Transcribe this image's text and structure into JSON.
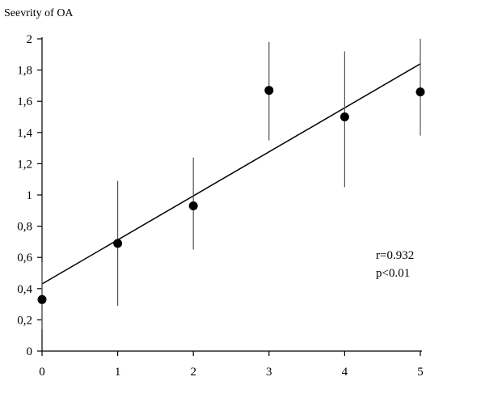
{
  "chart_data": {
    "type": "scatter",
    "ylabel": "Seevrity of OA",
    "xlim": [
      0,
      5
    ],
    "ylim": [
      0,
      2
    ],
    "x_ticks": [
      "0",
      "1",
      "2",
      "3",
      "4",
      "5"
    ],
    "y_ticks": [
      "0",
      "0,2",
      "0,4",
      "0,6",
      "0,8",
      "1",
      "1,2",
      "1,4",
      "1,6",
      "1,8",
      "2"
    ],
    "grid": false,
    "points": [
      {
        "x": 0,
        "y": 0.33,
        "err_low": 0.14,
        "err_high": 0.57
      },
      {
        "x": 1,
        "y": 0.69,
        "err_low": 0.29,
        "err_high": 1.09
      },
      {
        "x": 2,
        "y": 0.93,
        "err_low": 0.65,
        "err_high": 1.24
      },
      {
        "x": 3,
        "y": 1.67,
        "err_low": 1.35,
        "err_high": 1.98
      },
      {
        "x": 4,
        "y": 1.5,
        "err_low": 1.05,
        "err_high": 1.92
      },
      {
        "x": 5,
        "y": 1.66,
        "err_low": 1.38,
        "err_high": 2.0
      }
    ],
    "regression_line": {
      "x": [
        0,
        5
      ],
      "y": [
        0.43,
        1.84
      ]
    },
    "annotations": [
      "r=0.932",
      "p<0.01"
    ],
    "colors": {
      "points": "#000000",
      "error_bars": "#555555",
      "line": "#000000"
    }
  }
}
